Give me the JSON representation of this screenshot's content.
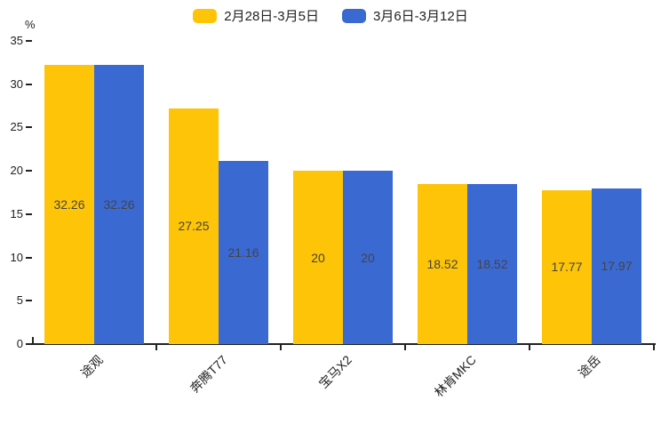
{
  "chart_data": {
    "type": "bar",
    "title": "",
    "categories": [
      "途观",
      "奔腾T77",
      "宝马X2",
      "林肯MKC",
      "途岳"
    ],
    "series": [
      {
        "name": "2月28日-3月5日",
        "color": "#FDC408",
        "values": [
          32.26,
          27.25,
          20,
          18.52,
          17.77
        ]
      },
      {
        "name": "3月6日-3月12日",
        "color": "#3B69D2",
        "values": [
          32.26,
          21.16,
          20,
          18.52,
          17.97
        ]
      }
    ],
    "xlabel": "",
    "ylabel": "%",
    "ylim": [
      0,
      35
    ],
    "yticks": [
      0,
      5,
      10,
      15,
      20,
      25,
      30,
      35
    ],
    "legend_position": "top-center",
    "grid": false,
    "bar_labels_visible": true,
    "bar_label_color": "#444444",
    "axis_color": "#222222",
    "background": "#ffffff"
  }
}
